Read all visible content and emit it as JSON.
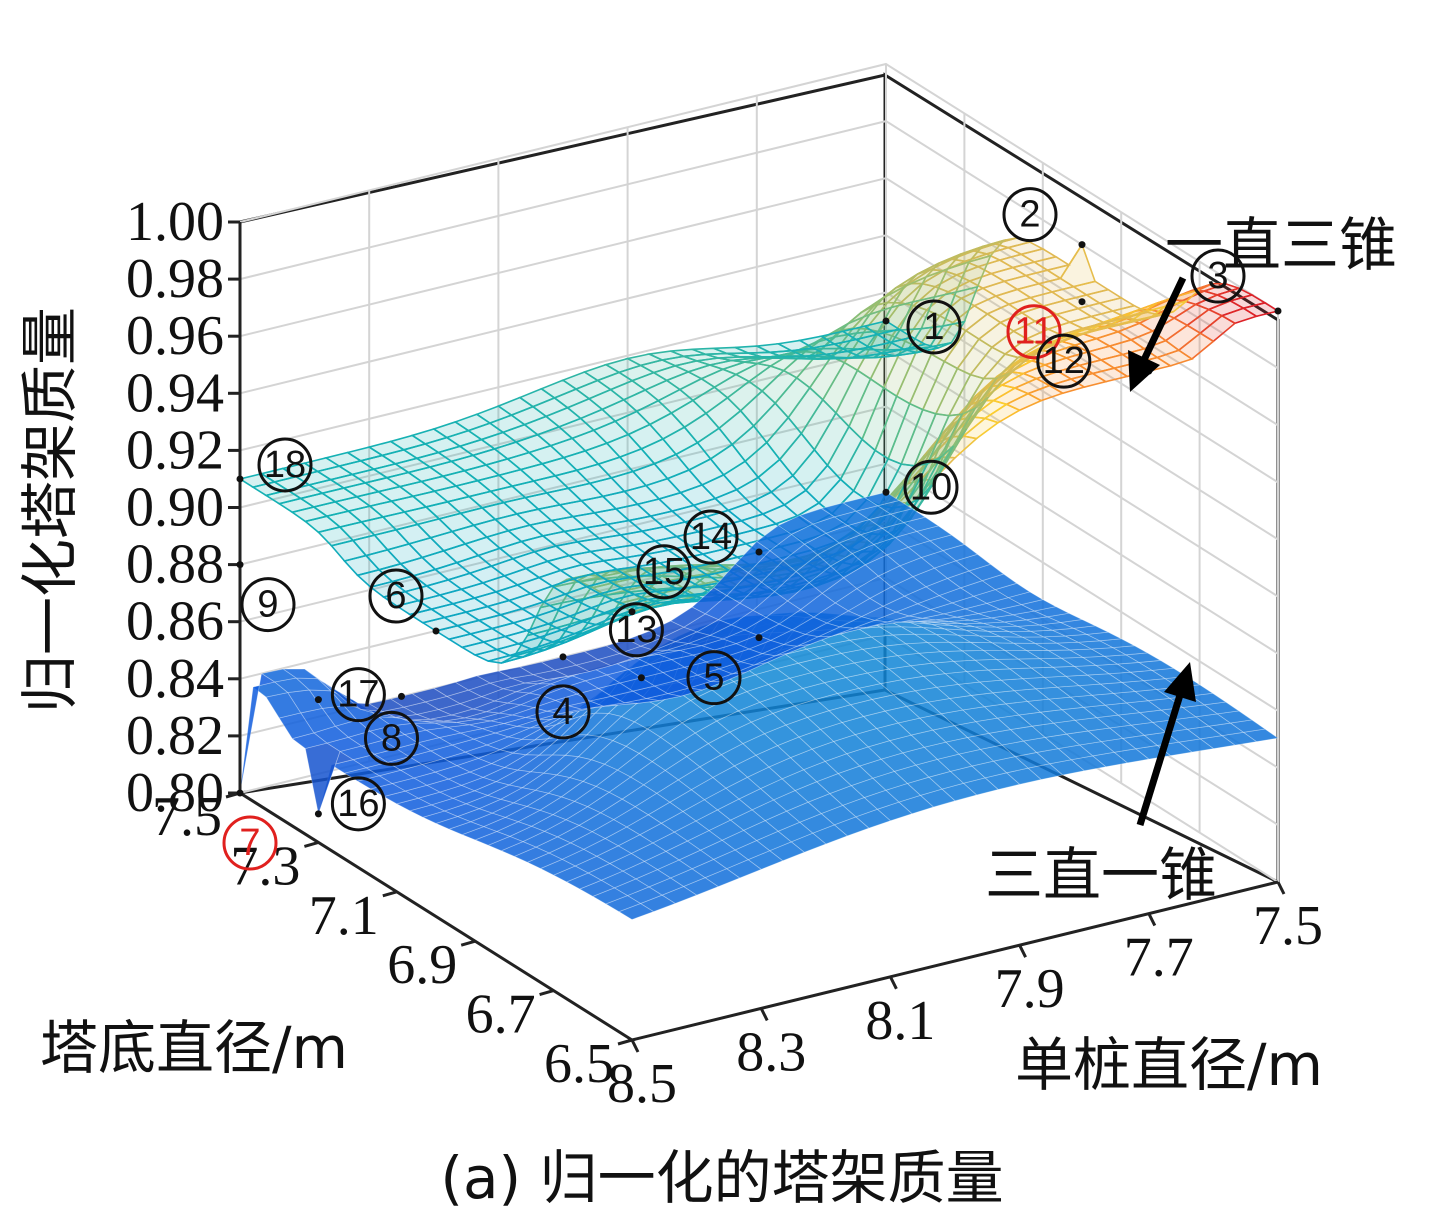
{
  "chart_data": {
    "type": "surface3d",
    "caption": "(a) 归一化的塔架质量",
    "zlabel": "归一化塔架质量",
    "xlabel": "塔底直径/m",
    "ylabel": "单桩直径/m",
    "zlim": [
      0.8,
      1.0
    ],
    "xlim": [
      6.5,
      7.5
    ],
    "ylim": [
      7.5,
      8.5
    ],
    "z_ticks": [
      "1.00",
      "0.98",
      "0.96",
      "0.94",
      "0.92",
      "0.90",
      "0.88",
      "0.86",
      "0.84",
      "0.82",
      "0.80"
    ],
    "x_ticks": [
      "7.5",
      "7.3",
      "7.1",
      "6.9",
      "6.7",
      "6.5"
    ],
    "y_ticks": [
      "8.5",
      "8.3",
      "8.1",
      "7.9",
      "7.7",
      "7.5"
    ],
    "grid": true,
    "colormap": "parula-jet",
    "surfaces": [
      {
        "name": "一直三锥",
        "style": "mesh",
        "points": [
          {
            "label": "1",
            "d_tower": 7.5,
            "d_pile": 7.5,
            "z": 0.91
          },
          {
            "label": "2",
            "d_tower": 7.0,
            "d_pile": 7.5,
            "z": 0.98
          },
          {
            "label": "3",
            "d_tower": 6.5,
            "d_pile": 7.5,
            "z": 1.0
          },
          {
            "label": "11",
            "d_tower": 7.0,
            "d_pile": 7.5,
            "z": 0.96
          },
          {
            "label": "12",
            "d_tower": 6.5,
            "d_pile": 7.7,
            "z": 0.99
          },
          {
            "label": "6",
            "d_tower": 7.0,
            "d_pile": 8.5,
            "z": 0.9
          },
          {
            "label": "14",
            "d_tower": 7.0,
            "d_pile": 8.0,
            "z": 0.9
          },
          {
            "label": "15",
            "d_tower": 6.5,
            "d_pile": 8.5,
            "z": 0.95
          },
          {
            "label": "18",
            "d_tower": 7.5,
            "d_pile": 8.5,
            "z": 0.91
          }
        ]
      },
      {
        "name": "三直一锥",
        "style": "surface",
        "points": [
          {
            "label": "4",
            "d_tower": 7.5,
            "d_pile": 8.0,
            "z": 0.82
          },
          {
            "label": "5",
            "d_tower": 7.0,
            "d_pile": 8.0,
            "z": 0.87
          },
          {
            "label": "7",
            "d_tower": 7.5,
            "d_pile": 8.5,
            "z": 0.8
          },
          {
            "label": "8",
            "d_tower": 7.5,
            "d_pile": 8.25,
            "z": 0.82
          },
          {
            "label": "9",
            "d_tower": 7.5,
            "d_pile": 8.5,
            "z": 0.88
          },
          {
            "label": "10",
            "d_tower": 7.5,
            "d_pile": 7.5,
            "z": 0.85
          },
          {
            "label": "13",
            "d_tower": 7.3,
            "d_pile": 8.0,
            "z": 0.83
          },
          {
            "label": "16",
            "d_tower": 7.3,
            "d_pile": 8.5,
            "z": 0.81
          },
          {
            "label": "17",
            "d_tower": 7.3,
            "d_pile": 8.5,
            "z": 0.85
          }
        ]
      }
    ],
    "highlight_labels": [
      "7",
      "11"
    ],
    "highlight_color": "#e0201e",
    "annotations": [
      {
        "text": "一直三锥",
        "target_surface": "一直三锥"
      },
      {
        "text": "三直一锥",
        "target_surface": "三直一锥"
      }
    ]
  }
}
